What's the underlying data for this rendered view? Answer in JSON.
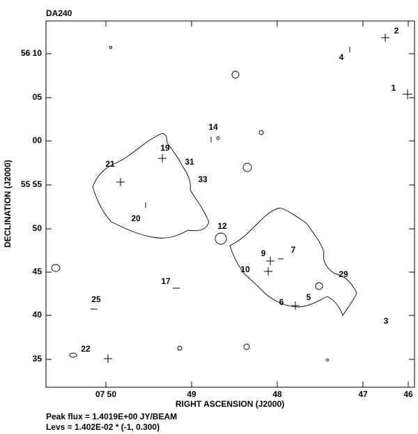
{
  "title": "DA240",
  "y_axis": {
    "label": "DECLINATION (J2000)",
    "ticks": [
      "56 10",
      "05",
      "00",
      "55 55",
      "50",
      "45",
      "40",
      "35"
    ]
  },
  "x_axis": {
    "label": "RIGHT ASCENSION (J2000)",
    "ticks": [
      "07 50",
      "49",
      "48",
      "47",
      "46"
    ]
  },
  "sources": [
    "1",
    "2",
    "4",
    "14",
    "19",
    "21",
    "31",
    "33",
    "20",
    "12",
    "9",
    "7",
    "10",
    "29",
    "6",
    "5",
    "17",
    "25",
    "3",
    "22"
  ],
  "footer": [
    "Peak flux = 1.4019E+00 JY/BEAM",
    "Levs = 1.402E-02 * (-1, 0.300)"
  ]
}
